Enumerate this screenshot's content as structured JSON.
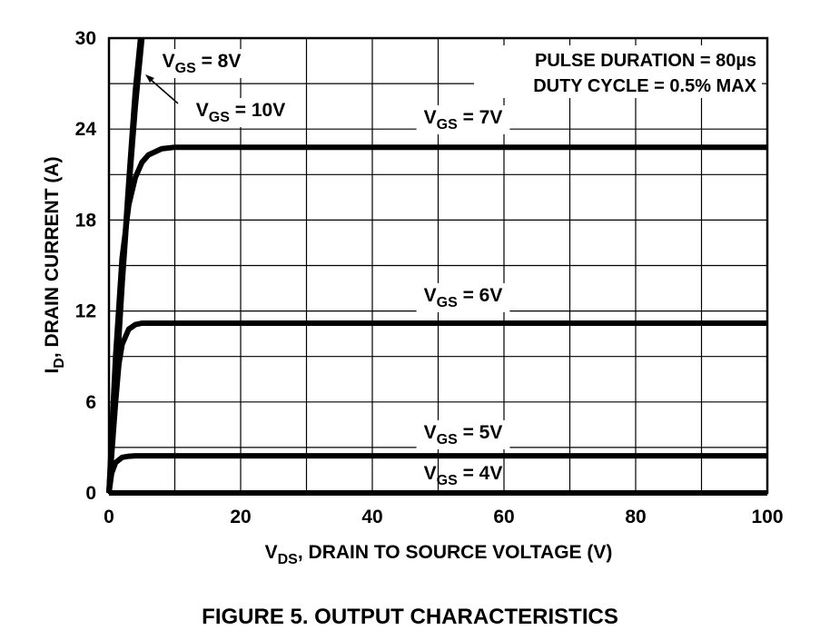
{
  "chart_data": {
    "type": "line",
    "xlabel": {
      "main": "V",
      "sub": "DS",
      "rest": ", DRAIN TO SOURCE VOLTAGE (V)"
    },
    "ylabel": {
      "main": "I",
      "sub": "D",
      "rest": ", DRAIN CURRENT (A)"
    },
    "xlim": [
      0,
      100
    ],
    "ylim": [
      0,
      30
    ],
    "xticks": [
      0,
      20,
      40,
      60,
      80,
      100
    ],
    "yticks": [
      0,
      6,
      12,
      18,
      24,
      30
    ],
    "grid": true,
    "annotation": {
      "line1": "PULSE DURATION = 80µs",
      "line2": "DUTY CYCLE = 0.5% MAX"
    },
    "series": [
      {
        "name": "VGS = 4V",
        "label_main": "V",
        "label_sub": "GS",
        "label_rest": " = 4V",
        "x": [
          0,
          100
        ],
        "y": [
          0,
          0
        ]
      },
      {
        "name": "VGS = 5V",
        "label_main": "V",
        "label_sub": "GS",
        "label_rest": " = 5V",
        "x": [
          0,
          0.4,
          1,
          2,
          3,
          4,
          6,
          10,
          100
        ],
        "y": [
          0,
          1.3,
          2.0,
          2.35,
          2.42,
          2.45,
          2.45,
          2.45,
          2.45
        ]
      },
      {
        "name": "VGS = 6V",
        "label_main": "V",
        "label_sub": "GS",
        "label_rest": " = 6V",
        "x": [
          0,
          0.4,
          1,
          1.5,
          2,
          3,
          4,
          5,
          6,
          10,
          100
        ],
        "y": [
          0,
          2.5,
          6.0,
          8.5,
          9.8,
          10.8,
          11.1,
          11.2,
          11.2,
          11.2,
          11.2
        ]
      },
      {
        "name": "VGS = 7V",
        "label_main": "V",
        "label_sub": "GS",
        "label_rest": " = 7V",
        "x": [
          0,
          0.5,
          1,
          2,
          3,
          4,
          5,
          6,
          8,
          10,
          15,
          100
        ],
        "y": [
          0,
          4.5,
          9.0,
          15.5,
          19.0,
          20.8,
          21.8,
          22.3,
          22.7,
          22.8,
          22.8,
          22.8
        ]
      },
      {
        "name": "VGS = 8V",
        "label_main": "V",
        "label_sub": "GS",
        "label_rest": " = 8V",
        "x": [
          0,
          1,
          2,
          3,
          4,
          4.8
        ],
        "y": [
          0,
          7.0,
          14.0,
          20.5,
          26.5,
          30
        ]
      },
      {
        "name": "VGS = 10V",
        "label_main": "V",
        "label_sub": "GS",
        "label_rest": " = 10V",
        "x": [
          0,
          1,
          2,
          3,
          4,
          5.0
        ],
        "y": [
          0,
          6.8,
          13.8,
          20.0,
          25.5,
          30
        ]
      }
    ],
    "caption": "FIGURE 5.  OUTPUT CHARACTERISTICS"
  }
}
